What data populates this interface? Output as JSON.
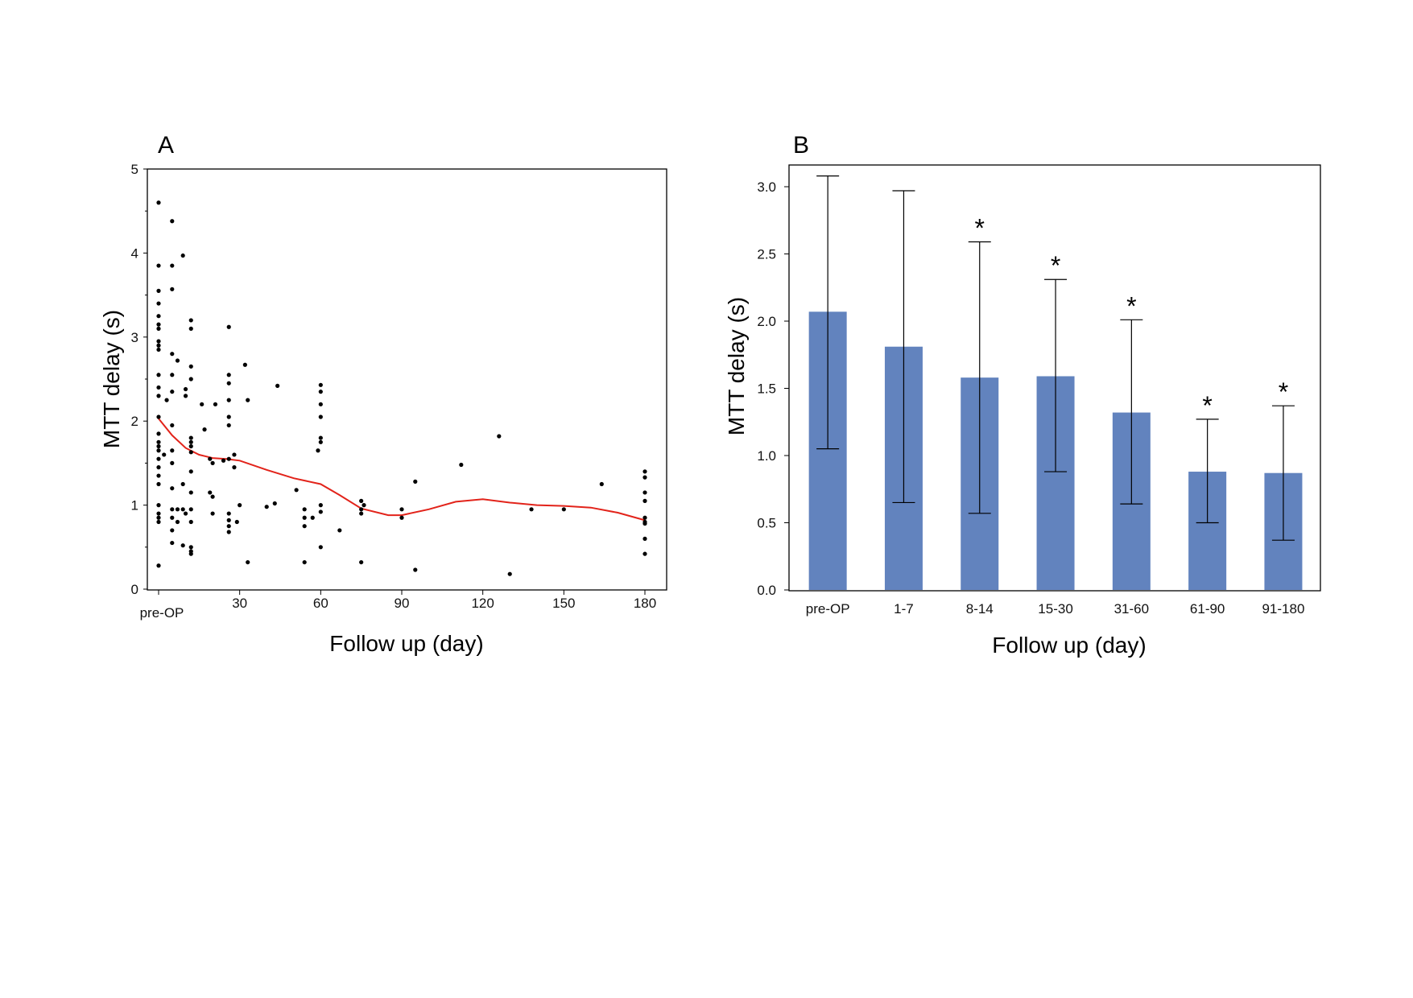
{
  "chart_data": [
    {
      "panel": "A",
      "type": "scatter",
      "xlabel": "Follow up (day)",
      "ylabel": "MTT delay (s)",
      "xlim": [
        0,
        180
      ],
      "ylim": [
        0,
        5
      ],
      "xticks": [
        {
          "value": 0,
          "label": "pre-OP"
        },
        {
          "value": 30,
          "label": "30"
        },
        {
          "value": 60,
          "label": "60"
        },
        {
          "value": 90,
          "label": "90"
        },
        {
          "value": 120,
          "label": "120"
        },
        {
          "value": 150,
          "label": "150"
        },
        {
          "value": 180,
          "label": "180"
        }
      ],
      "yticks": [
        {
          "value": 0,
          "label": "0"
        },
        {
          "value": 1,
          "label": "1"
        },
        {
          "value": 2,
          "label": "2"
        },
        {
          "value": 3,
          "label": "3"
        },
        {
          "value": 4,
          "label": "4"
        },
        {
          "value": 5,
          "label": "5"
        }
      ],
      "points": [
        [
          0,
          4.6
        ],
        [
          0,
          3.85
        ],
        [
          0,
          3.55
        ],
        [
          0,
          3.4
        ],
        [
          0,
          3.25
        ],
        [
          0,
          3.15
        ],
        [
          0,
          3.1
        ],
        [
          0,
          2.95
        ],
        [
          0,
          2.9
        ],
        [
          0,
          2.85
        ],
        [
          0,
          2.55
        ],
        [
          0,
          2.4
        ],
        [
          0,
          2.3
        ],
        [
          0,
          2.05
        ],
        [
          0,
          1.85
        ],
        [
          0,
          1.75
        ],
        [
          0,
          1.7
        ],
        [
          0,
          1.65
        ],
        [
          0,
          1.55
        ],
        [
          0,
          1.45
        ],
        [
          0,
          1.35
        ],
        [
          0,
          1.25
        ],
        [
          0,
          1.0
        ],
        [
          0,
          0.9
        ],
        [
          0,
          0.85
        ],
        [
          0,
          0.8
        ],
        [
          0,
          0.28
        ],
        [
          2,
          1.6
        ],
        [
          3,
          2.25
        ],
        [
          5,
          4.38
        ],
        [
          5,
          3.85
        ],
        [
          5,
          3.57
        ],
        [
          5,
          2.8
        ],
        [
          5,
          2.55
        ],
        [
          5,
          2.35
        ],
        [
          5,
          1.95
        ],
        [
          5,
          1.65
        ],
        [
          5,
          1.5
        ],
        [
          5,
          1.2
        ],
        [
          5,
          0.95
        ],
        [
          5,
          0.85
        ],
        [
          5,
          0.7
        ],
        [
          5,
          0.55
        ],
        [
          7,
          2.72
        ],
        [
          7,
          0.95
        ],
        [
          7,
          0.8
        ],
        [
          9,
          3.97
        ],
        [
          9,
          1.25
        ],
        [
          9,
          0.95
        ],
        [
          9,
          0.52
        ],
        [
          10,
          2.38
        ],
        [
          10,
          2.3
        ],
        [
          10,
          0.9
        ],
        [
          12,
          3.2
        ],
        [
          12,
          3.1
        ],
        [
          12,
          2.65
        ],
        [
          12,
          2.5
        ],
        [
          12,
          1.8
        ],
        [
          12,
          1.75
        ],
        [
          12,
          1.7
        ],
        [
          12,
          1.63
        ],
        [
          12,
          1.4
        ],
        [
          12,
          1.15
        ],
        [
          12,
          0.95
        ],
        [
          12,
          0.8
        ],
        [
          12,
          0.5
        ],
        [
          12,
          0.45
        ],
        [
          12,
          0.42
        ],
        [
          16,
          2.2
        ],
        [
          17,
          1.9
        ],
        [
          19,
          1.55
        ],
        [
          20,
          1.5
        ],
        [
          19,
          1.15
        ],
        [
          20,
          1.1
        ],
        [
          20,
          0.9
        ],
        [
          21,
          2.2
        ],
        [
          24,
          1.53
        ],
        [
          26,
          3.12
        ],
        [
          26,
          2.55
        ],
        [
          26,
          2.45
        ],
        [
          26,
          2.25
        ],
        [
          26,
          2.05
        ],
        [
          26,
          1.95
        ],
        [
          26,
          1.55
        ],
        [
          26,
          0.9
        ],
        [
          26,
          0.82
        ],
        [
          26,
          0.75
        ],
        [
          26,
          0.68
        ],
        [
          28,
          1.6
        ],
        [
          28,
          1.45
        ],
        [
          29,
          0.8
        ],
        [
          30,
          1.0
        ],
        [
          32,
          2.67
        ],
        [
          33,
          2.25
        ],
        [
          33,
          0.32
        ],
        [
          40,
          0.98
        ],
        [
          43,
          1.02
        ],
        [
          44,
          2.42
        ],
        [
          51,
          1.18
        ],
        [
          54,
          0.95
        ],
        [
          54,
          0.85
        ],
        [
          54,
          0.75
        ],
        [
          54,
          0.32
        ],
        [
          57,
          0.85
        ],
        [
          59,
          1.65
        ],
        [
          60,
          2.43
        ],
        [
          60,
          2.35
        ],
        [
          60,
          2.2
        ],
        [
          60,
          2.05
        ],
        [
          60,
          1.8
        ],
        [
          60,
          1.75
        ],
        [
          60,
          1.0
        ],
        [
          60,
          0.92
        ],
        [
          60,
          0.5
        ],
        [
          67,
          0.7
        ],
        [
          75,
          1.05
        ],
        [
          75,
          0.95
        ],
        [
          75,
          0.9
        ],
        [
          75,
          0.32
        ],
        [
          76,
          1.0
        ],
        [
          90,
          0.95
        ],
        [
          90,
          0.85
        ],
        [
          95,
          1.28
        ],
        [
          95,
          0.23
        ],
        [
          112,
          1.48
        ],
        [
          126,
          1.82
        ],
        [
          130,
          0.18
        ],
        [
          138,
          0.95
        ],
        [
          150,
          0.95
        ],
        [
          164,
          1.25
        ],
        [
          180,
          1.4
        ],
        [
          180,
          1.33
        ],
        [
          180,
          1.15
        ],
        [
          180,
          1.05
        ],
        [
          180,
          0.85
        ],
        [
          180,
          0.8
        ],
        [
          180,
          0.78
        ],
        [
          180,
          0.6
        ],
        [
          180,
          0.42
        ]
      ],
      "trend_line": {
        "color": "#e2231a",
        "x": [
          0,
          5,
          10,
          15,
          20,
          25,
          30,
          40,
          50,
          60,
          67,
          75,
          85,
          90,
          100,
          110,
          120,
          130,
          140,
          150,
          160,
          170,
          180
        ],
        "y": [
          2.03,
          1.83,
          1.68,
          1.6,
          1.56,
          1.55,
          1.53,
          1.42,
          1.32,
          1.25,
          1.12,
          0.96,
          0.88,
          0.88,
          0.95,
          1.04,
          1.07,
          1.03,
          1.0,
          0.99,
          0.97,
          0.91,
          0.82
        ]
      }
    },
    {
      "panel": "B",
      "type": "bar",
      "xlabel": "Follow up (day)",
      "ylabel": "MTT delay (s)",
      "ylim": [
        0,
        3.15
      ],
      "bar_color": "#6283be",
      "yticks": [
        "0.0",
        "0.5",
        "1.0",
        "1.5",
        "2.0",
        "2.5",
        "3.0"
      ],
      "categories": [
        "pre-OP",
        "1-7",
        "8-14",
        "15-30",
        "31-60",
        "61-90",
        "91-180"
      ],
      "values": [
        2.07,
        1.81,
        1.58,
        1.59,
        1.32,
        0.88,
        0.87
      ],
      "error_upper": [
        3.08,
        2.97,
        2.59,
        2.31,
        2.01,
        1.27,
        1.37
      ],
      "error_lower": [
        1.05,
        0.65,
        0.57,
        0.88,
        0.64,
        0.5,
        0.37
      ],
      "significance": [
        "",
        "",
        "*",
        "*",
        "*",
        "*",
        "*"
      ]
    }
  ]
}
